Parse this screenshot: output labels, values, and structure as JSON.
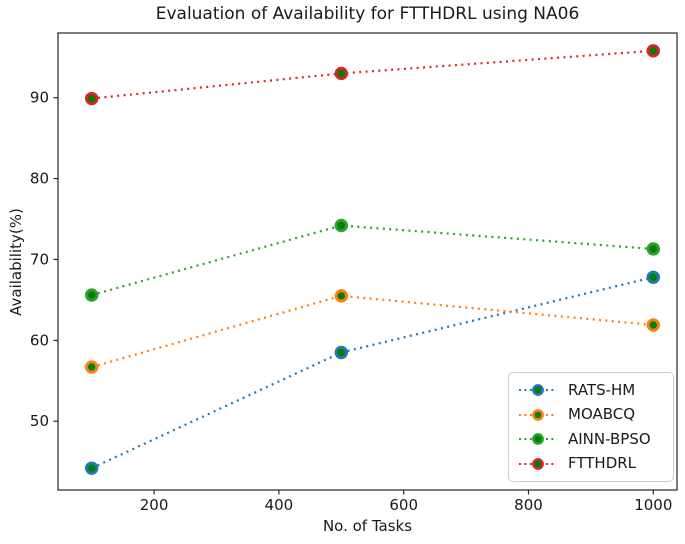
{
  "chart_data": {
    "type": "line",
    "title": "Evaluation of Availability for FTTHDRL using NA06",
    "xlabel": "No. of Tasks",
    "ylabel": "Availability(%)",
    "x": [
      100,
      500,
      1000
    ],
    "series": [
      {
        "name": "RATS-HM",
        "color": "#1f77b4",
        "marker_face": "#008000",
        "values": [
          44.2,
          58.5,
          67.8
        ]
      },
      {
        "name": "MOABCQ",
        "color": "#ff7f0e",
        "marker_face": "#008000",
        "values": [
          56.7,
          65.5,
          61.9
        ]
      },
      {
        "name": "AINN-BPSO",
        "color": "#2ca02c",
        "marker_face": "#008000",
        "values": [
          65.6,
          74.2,
          71.3
        ]
      },
      {
        "name": "FTTHDRL",
        "color": "#d62728",
        "marker_face": "#008000",
        "values": [
          89.9,
          93.0,
          95.8
        ]
      }
    ],
    "x_ticks": [
      "200",
      "400",
      "600",
      "800",
      "1000"
    ],
    "x_tick_values": [
      200,
      400,
      600,
      800,
      1000
    ],
    "y_ticks": [
      "50",
      "60",
      "70",
      "80",
      "90"
    ],
    "y_tick_values": [
      50,
      60,
      70,
      80,
      90
    ],
    "xlim": [
      46,
      1038
    ],
    "ylim": [
      41.5,
      98
    ],
    "grid": false,
    "line_style": "dotted",
    "marker": "circle",
    "legend_position": "lower right",
    "axis_color": "#262626",
    "tick_label_color": "#1a1a1a"
  }
}
